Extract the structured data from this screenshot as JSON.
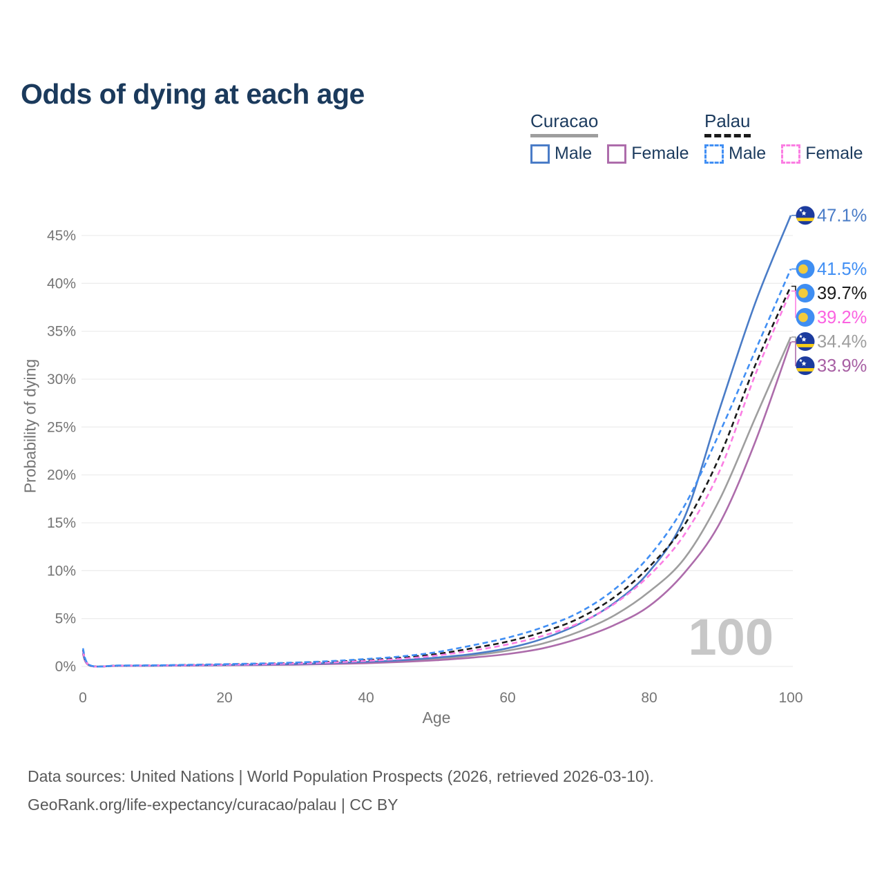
{
  "title": "Odds of dying at each age",
  "watermark": "100",
  "legend": {
    "groups": [
      {
        "name": "Curacao",
        "line_style": "solid",
        "underline_color": "#9e9e9e",
        "items": [
          {
            "label": "Male",
            "color": "#4a7cc7"
          },
          {
            "label": "Female",
            "color": "#ad6cab"
          }
        ]
      },
      {
        "name": "Palau",
        "line_style": "dashed",
        "underline_color": "#1a1a1a",
        "items": [
          {
            "label": "Male",
            "color": "#418ff4"
          },
          {
            "label": "Female",
            "color": "#fb7ee3"
          }
        ]
      }
    ]
  },
  "footer": {
    "line1": "Data sources: United Nations | World Population Prospects (2026, retrieved 2026-03-10).",
    "line2": "GeoRank.org/life-expectancy/curacao/palau | CC BY"
  },
  "chart_data": {
    "type": "line",
    "title": "Odds of dying at each age",
    "xlabel": "Age",
    "ylabel": "Probability of dying",
    "xlim": [
      0,
      100
    ],
    "ylim": [
      0,
      47.5
    ],
    "grid": true,
    "x_ticks": [
      0,
      20,
      40,
      60,
      80,
      100
    ],
    "y_ticks": [
      {
        "v": 0,
        "label": "0%"
      },
      {
        "v": 5,
        "label": "5%"
      },
      {
        "v": 10,
        "label": "10%"
      },
      {
        "v": 15,
        "label": "15%"
      },
      {
        "v": 20,
        "label": "20%"
      },
      {
        "v": 25,
        "label": "25%"
      },
      {
        "v": 30,
        "label": "30%"
      },
      {
        "v": 35,
        "label": "35%"
      },
      {
        "v": 40,
        "label": "40%"
      },
      {
        "v": 45,
        "label": "45%"
      }
    ],
    "ages": [
      0,
      1,
      5,
      10,
      15,
      20,
      25,
      30,
      35,
      40,
      45,
      50,
      55,
      60,
      65,
      70,
      75,
      80,
      85,
      90,
      95,
      100
    ],
    "series": [
      {
        "name": "Curacao Total",
        "country": "Curacao",
        "sex": "Both",
        "color": "#9e9e9e",
        "dash": "solid",
        "flag": "curacao",
        "end_value": 34.4,
        "end_label": "34.4%",
        "label_color": "#9e9e9e",
        "values": [
          1.4,
          0.09,
          0.07,
          0.08,
          0.11,
          0.14,
          0.18,
          0.23,
          0.31,
          0.42,
          0.58,
          0.8,
          1.15,
          1.65,
          2.4,
          3.6,
          5.3,
          7.8,
          11.3,
          17.5,
          26.0,
          34.4
        ]
      },
      {
        "name": "Curacao Female",
        "country": "Curacao",
        "sex": "Female",
        "color": "#ad6cab",
        "dash": "solid",
        "flag": "curacao",
        "end_value": 33.9,
        "end_label": "33.9%",
        "label_color": "#a75fa3",
        "values": [
          1.3,
          0.08,
          0.06,
          0.07,
          0.09,
          0.12,
          0.15,
          0.19,
          0.25,
          0.34,
          0.47,
          0.65,
          0.92,
          1.3,
          1.9,
          2.9,
          4.3,
          6.3,
          9.8,
          15.0,
          23.5,
          33.9
        ]
      },
      {
        "name": "Curacao Male",
        "country": "Curacao",
        "sex": "Male",
        "color": "#4a7cc7",
        "dash": "solid",
        "flag": "curacao",
        "end_value": 47.1,
        "end_label": "47.1%",
        "label_color": "#4a7cc7",
        "values": [
          1.5,
          0.1,
          0.08,
          0.09,
          0.12,
          0.16,
          0.2,
          0.26,
          0.35,
          0.48,
          0.65,
          0.92,
          1.3,
          1.9,
          2.9,
          4.4,
          6.6,
          9.9,
          15.6,
          27.0,
          38.0,
          47.1
        ]
      },
      {
        "name": "Palau Total",
        "country": "Palau",
        "sex": "Both",
        "color": "#1a1a1a",
        "dash": "dashed",
        "flag": "palau",
        "end_value": 39.7,
        "end_label": "39.7%",
        "label_color": "#1a1a1a",
        "values": [
          1.7,
          0.11,
          0.09,
          0.11,
          0.15,
          0.21,
          0.27,
          0.36,
          0.49,
          0.67,
          0.92,
          1.3,
          1.9,
          2.6,
          3.6,
          5.0,
          7.2,
          10.4,
          14.8,
          22.0,
          31.5,
          39.7
        ]
      },
      {
        "name": "Palau Female",
        "country": "Palau",
        "sex": "Female",
        "color": "#fb7ee3",
        "dash": "dashed",
        "flag": "palau",
        "end_value": 39.2,
        "end_label": "39.2%",
        "label_color": "#fb63e1",
        "values": [
          1.6,
          0.1,
          0.08,
          0.1,
          0.13,
          0.18,
          0.23,
          0.31,
          0.42,
          0.58,
          0.8,
          1.15,
          1.65,
          2.3,
          3.2,
          4.5,
          6.5,
          9.5,
          13.8,
          20.5,
          30.5,
          39.2
        ]
      },
      {
        "name": "Palau Male",
        "country": "Palau",
        "sex": "Male",
        "color": "#418ff4",
        "dash": "dashed",
        "flag": "palau",
        "end_value": 41.5,
        "end_label": "41.5%",
        "label_color": "#418ff4",
        "values": [
          1.9,
          0.13,
          0.1,
          0.12,
          0.17,
          0.24,
          0.31,
          0.41,
          0.56,
          0.78,
          1.05,
          1.5,
          2.2,
          3.0,
          4.1,
          5.6,
          8.0,
          11.5,
          16.8,
          24.5,
          33.0,
          41.5
        ]
      }
    ]
  }
}
